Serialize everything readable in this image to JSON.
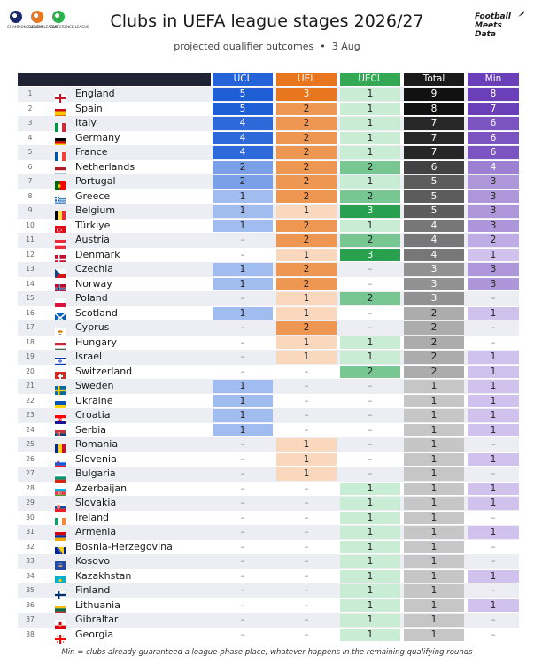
{
  "title": "Clubs in UEFA league stages 2026/27",
  "subtitle": "projected qualifier outcomes",
  "date": "3 Aug",
  "brand": [
    "Football",
    "Meets",
    "Data"
  ],
  "logos": [
    {
      "name": "champions-league-logo",
      "caption": "CHAMPIONS LEAGUE",
      "color": "#1a2a6c"
    },
    {
      "name": "europa-league-logo",
      "caption": "EUROPA LEAGUE",
      "color": "#e87722"
    },
    {
      "name": "conference-league-logo",
      "caption": "CONFERENCE LEAGUE",
      "color": "#2bb24c"
    }
  ],
  "footnote": "Min = clubs already guaranteed a league-phase place, whatever happens in the remaining qualifying rounds",
  "dash": "–",
  "colors": {
    "header_dark": "#1f2333",
    "ucl": "#1f5fd6",
    "uel": "#e8761e",
    "uecl": "#1f9a4b",
    "total": "#111111",
    "min": "#6a3fb8"
  },
  "chart_data": {
    "type": "table",
    "columns": [
      "UCL",
      "UEL",
      "UECL",
      "Total",
      "Min"
    ],
    "rows": [
      {
        "rank": 1,
        "country": "England",
        "flag": "england",
        "ucl": 5,
        "uel": 3,
        "uecl": 1,
        "total": 9,
        "min": 8
      },
      {
        "rank": 2,
        "country": "Spain",
        "flag": "spain",
        "ucl": 5,
        "uel": 2,
        "uecl": 1,
        "total": 8,
        "min": 7
      },
      {
        "rank": 3,
        "country": "Italy",
        "flag": "italy",
        "ucl": 4,
        "uel": 2,
        "uecl": 1,
        "total": 7,
        "min": 6
      },
      {
        "rank": 4,
        "country": "Germany",
        "flag": "germany",
        "ucl": 4,
        "uel": 2,
        "uecl": 1,
        "total": 7,
        "min": 6
      },
      {
        "rank": 5,
        "country": "France",
        "flag": "france",
        "ucl": 4,
        "uel": 2,
        "uecl": 1,
        "total": 7,
        "min": 6
      },
      {
        "rank": 6,
        "country": "Netherlands",
        "flag": "netherlands",
        "ucl": 2,
        "uel": 2,
        "uecl": 2,
        "total": 6,
        "min": 4
      },
      {
        "rank": 7,
        "country": "Portugal",
        "flag": "portugal",
        "ucl": 2,
        "uel": 2,
        "uecl": 1,
        "total": 5,
        "min": 3
      },
      {
        "rank": 8,
        "country": "Greece",
        "flag": "greece",
        "ucl": 1,
        "uel": 2,
        "uecl": 2,
        "total": 5,
        "min": 3
      },
      {
        "rank": 9,
        "country": "Belgium",
        "flag": "belgium",
        "ucl": 1,
        "uel": 1,
        "uecl": 3,
        "total": 5,
        "min": 3
      },
      {
        "rank": 10,
        "country": "Türkiye",
        "flag": "turkiye",
        "ucl": 1,
        "uel": 2,
        "uecl": 1,
        "total": 4,
        "min": 3
      },
      {
        "rank": 11,
        "country": "Austria",
        "flag": "austria",
        "ucl": null,
        "uel": 2,
        "uecl": 2,
        "total": 4,
        "min": 2
      },
      {
        "rank": 12,
        "country": "Denmark",
        "flag": "denmark",
        "ucl": null,
        "uel": 1,
        "uecl": 3,
        "total": 4,
        "min": 1
      },
      {
        "rank": 13,
        "country": "Czechia",
        "flag": "czechia",
        "ucl": 1,
        "uel": 2,
        "uecl": null,
        "total": 3,
        "min": 3
      },
      {
        "rank": 14,
        "country": "Norway",
        "flag": "norway",
        "ucl": 1,
        "uel": 2,
        "uecl": null,
        "total": 3,
        "min": 3
      },
      {
        "rank": 15,
        "country": "Poland",
        "flag": "poland",
        "ucl": null,
        "uel": 1,
        "uecl": 2,
        "total": 3,
        "min": null
      },
      {
        "rank": 16,
        "country": "Scotland",
        "flag": "scotland",
        "ucl": 1,
        "uel": 1,
        "uecl": null,
        "total": 2,
        "min": 1
      },
      {
        "rank": 17,
        "country": "Cyprus",
        "flag": "cyprus",
        "ucl": null,
        "uel": 2,
        "uecl": null,
        "total": 2,
        "min": null
      },
      {
        "rank": 18,
        "country": "Hungary",
        "flag": "hungary",
        "ucl": null,
        "uel": 1,
        "uecl": 1,
        "total": 2,
        "min": null
      },
      {
        "rank": 19,
        "country": "Israel",
        "flag": "israel",
        "ucl": null,
        "uel": 1,
        "uecl": 1,
        "total": 2,
        "min": 1
      },
      {
        "rank": 20,
        "country": "Switzerland",
        "flag": "switzerland",
        "ucl": null,
        "uel": null,
        "uecl": 2,
        "total": 2,
        "min": 1
      },
      {
        "rank": 21,
        "country": "Sweden",
        "flag": "sweden",
        "ucl": 1,
        "uel": null,
        "uecl": null,
        "total": 1,
        "min": 1
      },
      {
        "rank": 22,
        "country": "Ukraine",
        "flag": "ukraine",
        "ucl": 1,
        "uel": null,
        "uecl": null,
        "total": 1,
        "min": 1
      },
      {
        "rank": 23,
        "country": "Croatia",
        "flag": "croatia",
        "ucl": 1,
        "uel": null,
        "uecl": null,
        "total": 1,
        "min": 1
      },
      {
        "rank": 24,
        "country": "Serbia",
        "flag": "serbia",
        "ucl": 1,
        "uel": null,
        "uecl": null,
        "total": 1,
        "min": 1
      },
      {
        "rank": 25,
        "country": "Romania",
        "flag": "romania",
        "ucl": null,
        "uel": 1,
        "uecl": null,
        "total": 1,
        "min": null
      },
      {
        "rank": 26,
        "country": "Slovenia",
        "flag": "slovenia",
        "ucl": null,
        "uel": 1,
        "uecl": null,
        "total": 1,
        "min": 1
      },
      {
        "rank": 27,
        "country": "Bulgaria",
        "flag": "bulgaria",
        "ucl": null,
        "uel": 1,
        "uecl": null,
        "total": 1,
        "min": null
      },
      {
        "rank": 28,
        "country": "Azerbaijan",
        "flag": "azerbaijan",
        "ucl": null,
        "uel": null,
        "uecl": 1,
        "total": 1,
        "min": 1
      },
      {
        "rank": 29,
        "country": "Slovakia",
        "flag": "slovakia",
        "ucl": null,
        "uel": null,
        "uecl": 1,
        "total": 1,
        "min": 1
      },
      {
        "rank": 30,
        "country": "Ireland",
        "flag": "ireland",
        "ucl": null,
        "uel": null,
        "uecl": 1,
        "total": 1,
        "min": null
      },
      {
        "rank": 31,
        "country": "Armenia",
        "flag": "armenia",
        "ucl": null,
        "uel": null,
        "uecl": 1,
        "total": 1,
        "min": 1
      },
      {
        "rank": 32,
        "country": "Bosnia-Herzegovina",
        "flag": "bosnia",
        "ucl": null,
        "uel": null,
        "uecl": 1,
        "total": 1,
        "min": null
      },
      {
        "rank": 33,
        "country": "Kosovo",
        "flag": "kosovo",
        "ucl": null,
        "uel": null,
        "uecl": 1,
        "total": 1,
        "min": null
      },
      {
        "rank": 34,
        "country": "Kazakhstan",
        "flag": "kazakhstan",
        "ucl": null,
        "uel": null,
        "uecl": 1,
        "total": 1,
        "min": 1
      },
      {
        "rank": 35,
        "country": "Finland",
        "flag": "finland",
        "ucl": null,
        "uel": null,
        "uecl": 1,
        "total": 1,
        "min": null
      },
      {
        "rank": 36,
        "country": "Lithuania",
        "flag": "lithuania",
        "ucl": null,
        "uel": null,
        "uecl": 1,
        "total": 1,
        "min": 1
      },
      {
        "rank": 37,
        "country": "Gibraltar",
        "flag": "gibraltar",
        "ucl": null,
        "uel": null,
        "uecl": 1,
        "total": 1,
        "min": null
      },
      {
        "rank": 38,
        "country": "Georgia",
        "flag": "georgia",
        "ucl": null,
        "uel": null,
        "uecl": 1,
        "total": 1,
        "min": null
      }
    ]
  }
}
